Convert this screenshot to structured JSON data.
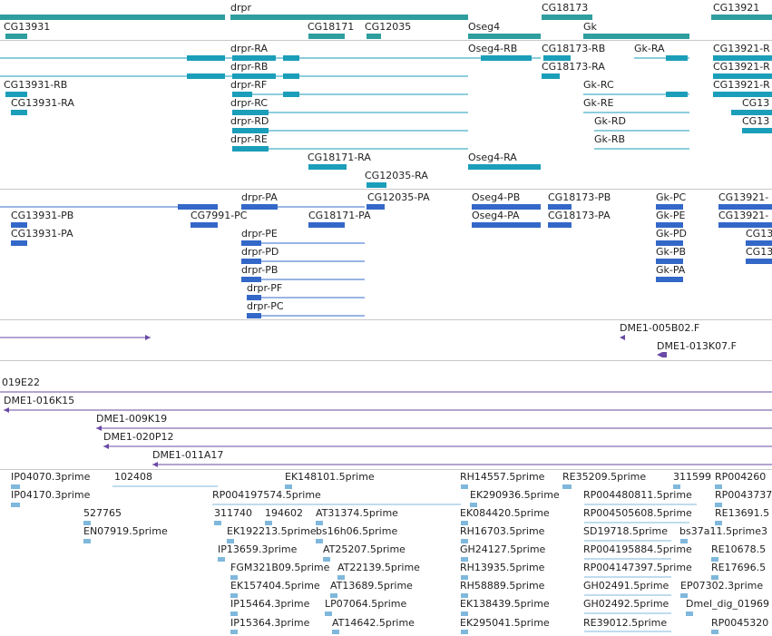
{
  "colors": {
    "gene": "#2e9e9e",
    "transcript": "#1b9eb9",
    "protein": "#3468c8",
    "clone": "#6a4aa6",
    "est": "#7fb8dc"
  },
  "tracks": {
    "genes": {
      "labels": {
        "drpr": "drpr",
        "cg13931": "CG13931",
        "cg18171": "CG18171",
        "cg12035": "CG12035",
        "oseg4": "Oseg4",
        "cg18173": "CG18173",
        "gk": "Gk",
        "cg13921": "CG13921"
      }
    },
    "transcripts": {
      "labels": [
        "drpr-RA",
        "drpr-RB",
        "drpr-RF",
        "drpr-RC",
        "drpr-RD",
        "drpr-RE",
        "CG13931-RB",
        "CG13931-RA",
        "CG18171-RA",
        "CG12035-RA",
        "Oseg4-RB",
        "Oseg4-RA",
        "CG18173-RB",
        "CG18173-RA",
        "Gk-RA",
        "Gk-RC",
        "Gk-RE",
        "Gk-RD",
        "Gk-RB",
        "CG13921-R",
        "CG13921-R",
        "CG13921-R",
        "CG13",
        "CG13"
      ]
    },
    "proteins": {
      "labels": [
        "drpr-PA",
        "CG12035-PA",
        "CG13931-PB",
        "CG7991-PC",
        "CG18171-PA",
        "CG13931-PA",
        "drpr-PE",
        "drpr-PD",
        "drpr-PB",
        "drpr-PF",
        "drpr-PC",
        "Oseg4-PB",
        "Oseg4-PA",
        "CG18173-PB",
        "CG18173-PA",
        "Gk-PC",
        "Gk-PE",
        "Gk-PD",
        "Gk-PB",
        "Gk-PA",
        "CG13921-",
        "CG13921-",
        "CG13",
        "CG13"
      ]
    },
    "clones_short": {
      "labels": [
        "DME1-005B02.F",
        "DME1-013K07.F"
      ]
    },
    "clones_long": {
      "labels": [
        "019E22",
        "DME1-016K15",
        "DME1-009K19",
        "DME1-020P12",
        "DME1-011A17"
      ]
    },
    "ests": {
      "labels": [
        "IP04070.3prime",
        "102408",
        "EK148101.5prime",
        "RH14557.5prime",
        "RE35209.5prime",
        "311599",
        "RP004260",
        "IP04170.3prime",
        "RP004197574.5prime",
        "EK290936.5prime",
        "RP004480811.5prime",
        "RP0043737",
        "527765",
        "311740",
        "194602",
        "AT31374.5prime",
        "EK084420.5prime",
        "RP004505608.5prime",
        "RE13691.5",
        "EN07919.5prime",
        "EK192213.5prime",
        "bs16h06.5prime",
        "RH16703.5prime",
        "SD19718.5prime",
        "bs37a11.5prime3",
        "IP13659.3prime",
        "AT25207.5prime",
        "GH24127.5prime",
        "RP004195884.5prime",
        "RE10678.5",
        "FGM321B09.5prime",
        "AT22139.5prime",
        "RH13935.5prime",
        "RP004147397.5prime",
        "RE17696.5",
        "EK157404.5prime",
        "AT13689.5prime",
        "RH58889.5prime",
        "GH02491.5prime",
        "EP07302.3prime",
        "IP15464.3prime",
        "LP07064.5prime",
        "EK138439.5prime",
        "GH02492.5prime",
        "Dmel_dig_01969",
        "IP15364.3prime",
        "AT14642.5prime",
        "EK295041.5prime",
        "RE39012.5prime",
        "RP0045320"
      ]
    }
  }
}
